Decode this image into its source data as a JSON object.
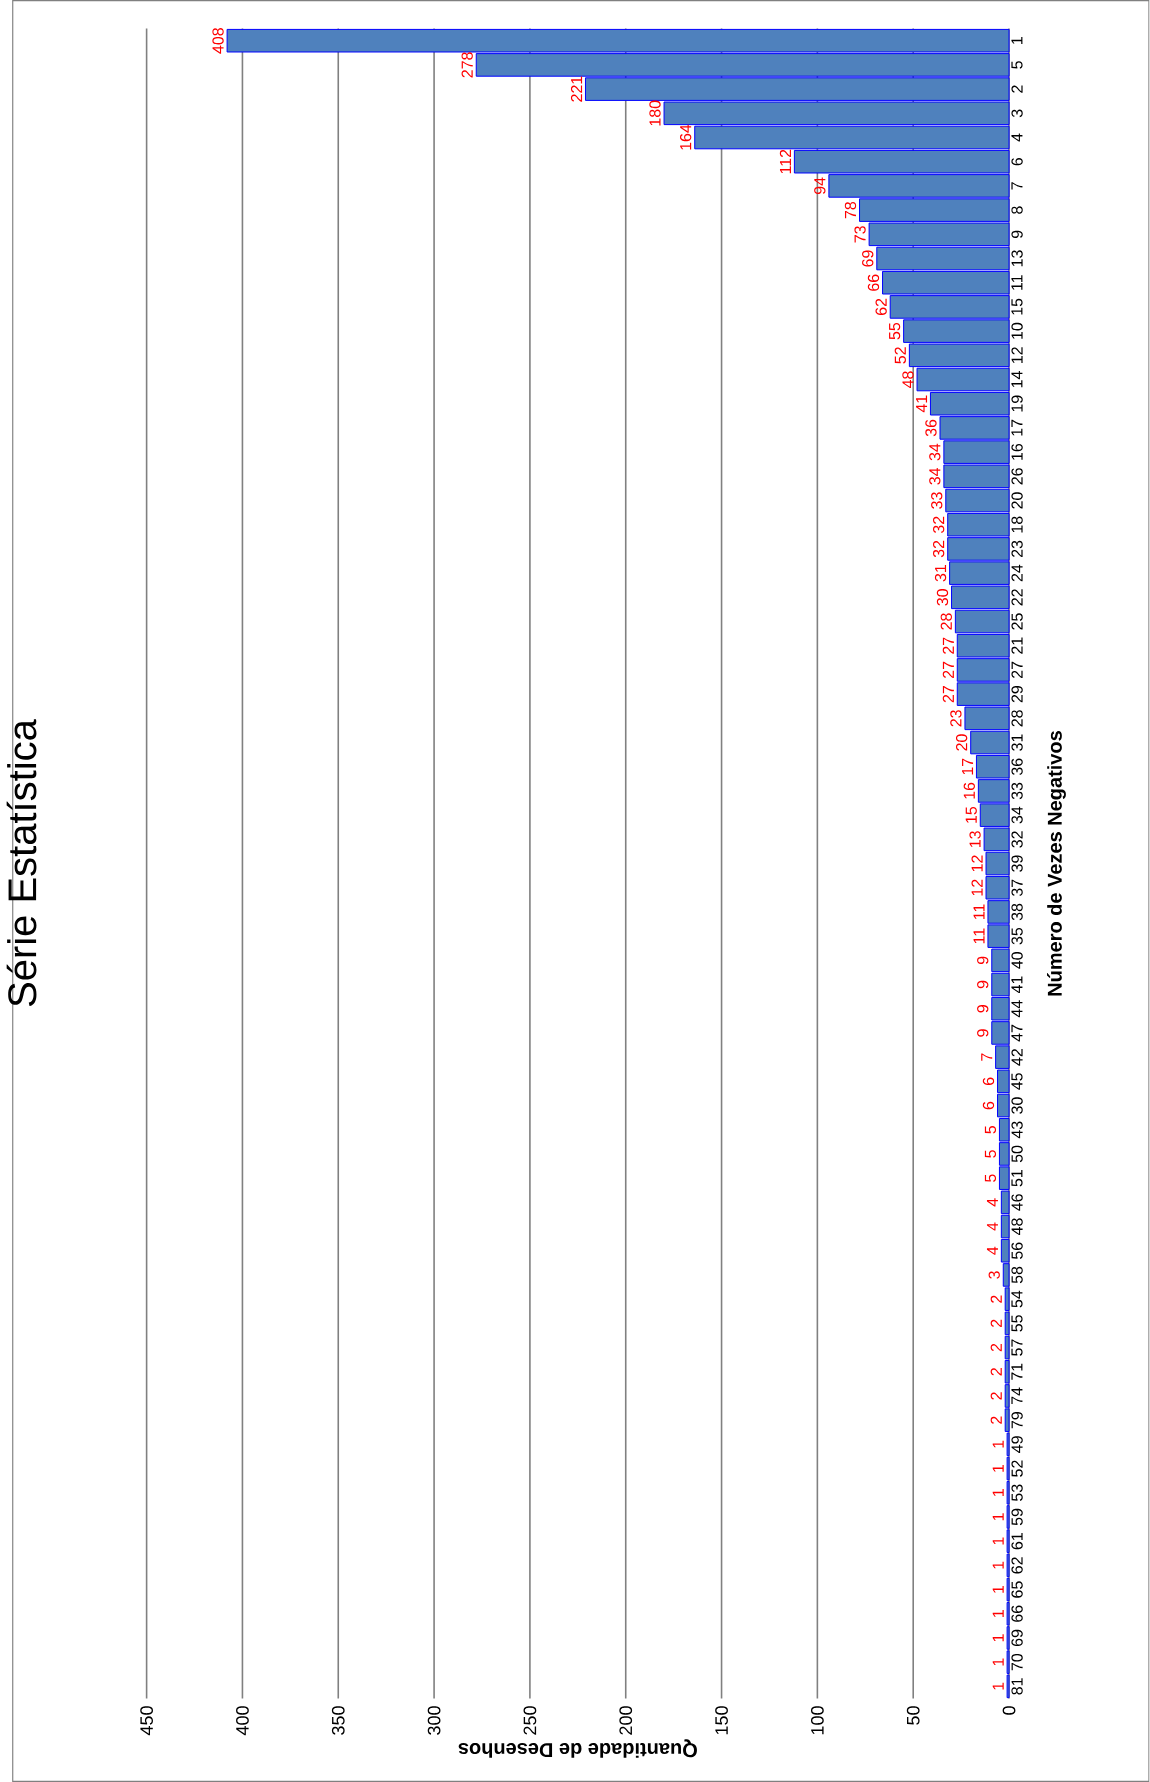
{
  "chart_data": {
    "type": "bar",
    "orientation": "horizontal",
    "title": "Série Estatística",
    "ylabel": "Número de Vezes Negativos",
    "xlabel": "Quantidade  de  Desenhos",
    "categories": [
      "1",
      "5",
      "2",
      "3",
      "4",
      "6",
      "7",
      "8",
      "9",
      "13",
      "11",
      "15",
      "10",
      "12",
      "14",
      "19",
      "17",
      "16",
      "26",
      "20",
      "18",
      "23",
      "24",
      "22",
      "25",
      "21",
      "27",
      "29",
      "28",
      "31",
      "36",
      "33",
      "34",
      "32",
      "39",
      "37",
      "38",
      "35",
      "40",
      "41",
      "44",
      "47",
      "42",
      "45",
      "30",
      "43",
      "50",
      "51",
      "46",
      "48",
      "56",
      "58",
      "54",
      "55",
      "57",
      "71",
      "74",
      "79",
      "49",
      "52",
      "53",
      "59",
      "61",
      "62",
      "65",
      "66",
      "69",
      "70",
      "81"
    ],
    "values": [
      408,
      278,
      221,
      180,
      164,
      112,
      94,
      78,
      73,
      69,
      66,
      62,
      55,
      52,
      48,
      41,
      36,
      34,
      34,
      33,
      32,
      32,
      31,
      30,
      28,
      27,
      27,
      27,
      23,
      20,
      17,
      16,
      15,
      13,
      12,
      12,
      11,
      11,
      9,
      9,
      9,
      9,
      7,
      6,
      6,
      5,
      5,
      5,
      4,
      4,
      4,
      3,
      2,
      2,
      2,
      2,
      2,
      2,
      1,
      1,
      1,
      1,
      1,
      1,
      1,
      1,
      1,
      1,
      1
    ],
    "color": "#4f81bd",
    "xlim": [
      450,
      0
    ],
    "xticks": [
      0,
      50,
      100,
      150,
      200,
      250,
      300,
      350,
      400,
      450
    ],
    "grid": "x",
    "data_labels": true
  }
}
